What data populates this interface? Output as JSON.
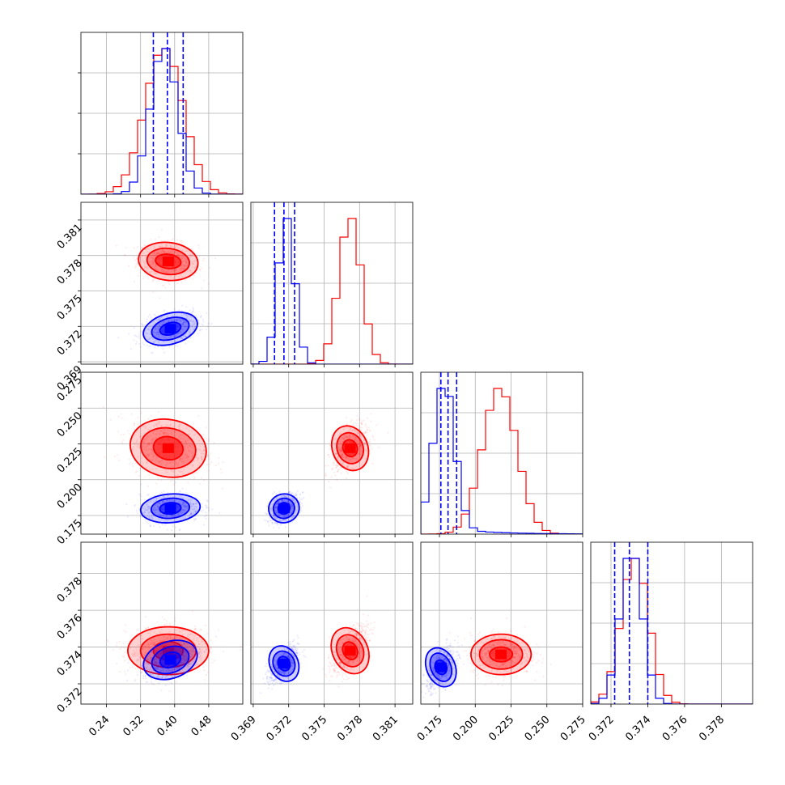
{
  "chart_data": {
    "type": "corner",
    "colors": {
      "red": "#ff0000",
      "blue": "#0000ff"
    },
    "grid": true,
    "parameters": [
      {
        "index": 0,
        "range": [
          0.18,
          0.56
        ],
        "ticks": [
          "0.24",
          "0.32",
          "0.40",
          "0.48"
        ],
        "tick_values": [
          0.24,
          0.32,
          0.4,
          0.48
        ]
      },
      {
        "index": 1,
        "range": [
          0.3688,
          0.3825
        ],
        "ticks": [
          "0.369",
          "0.372",
          "0.375",
          "0.378",
          "0.381"
        ],
        "tick_values": [
          0.369,
          0.372,
          0.375,
          0.378,
          0.381
        ]
      },
      {
        "index": 2,
        "range": [
          0.162,
          0.275
        ],
        "ticks": [
          "0.175",
          "0.200",
          "0.225",
          "0.250",
          "0.275"
        ],
        "tick_values": [
          0.175,
          0.2,
          0.225,
          0.25,
          0.275
        ]
      },
      {
        "index": 3,
        "range": [
          0.3709,
          0.3797
        ],
        "ticks": [
          "0.372",
          "0.374",
          "0.376",
          "0.378"
        ],
        "tick_values": [
          0.372,
          0.374,
          0.376,
          0.378
        ]
      }
    ],
    "series": [
      {
        "color": "red",
        "means": [
          0.385,
          0.3775,
          0.222,
          0.3738
        ],
        "sds": [
          0.045,
          0.00095,
          0.012,
          0.00075
        ],
        "hist_peaks": [
          0.375,
          0.3772,
          0.217,
          0.3733
        ]
      },
      {
        "color": "blue",
        "means": [
          0.39,
          0.3718,
          0.18,
          0.373
        ],
        "sds": [
          0.032,
          0.0007,
          0.0075,
          0.0006
        ],
        "hist_peaks": [
          0.375,
          0.3718,
          0.178,
          0.3731
        ],
        "quantiles": [
          [
            0.35,
            0.383,
            0.42
          ],
          [
            0.3708,
            0.3716,
            0.3725
          ],
          [
            0.176,
            0.181,
            0.187
          ],
          [
            0.3722,
            0.373,
            0.374
          ]
        ]
      }
    ],
    "contours": [
      {
        "panel": [
          1,
          0
        ],
        "series": [
          {
            "color": "red",
            "center": [
              0.385,
              0.3775
            ],
            "radii": [
              [
                0.03,
                0.0006
              ],
              [
                0.05,
                0.0011
              ],
              [
                0.07,
                0.0016
              ]
            ],
            "tilt": -0.15
          },
          {
            "color": "blue",
            "center": [
              0.39,
              0.3718
            ],
            "radii": [
              [
                0.025,
                0.0005
              ],
              [
                0.045,
                0.0009
              ],
              [
                0.065,
                0.0013
              ]
            ],
            "tilt": 0.35
          }
        ]
      },
      {
        "panel": [
          2,
          0
        ],
        "series": [
          {
            "color": "red",
            "center": [
              0.385,
              0.222
            ],
            "radii": [
              [
                0.035,
                0.008
              ],
              [
                0.065,
                0.014
              ],
              [
                0.09,
                0.02
              ]
            ],
            "tilt": -0.25
          },
          {
            "color": "blue",
            "center": [
              0.39,
              0.18
            ],
            "radii": [
              [
                0.025,
                0.004
              ],
              [
                0.045,
                0.007
              ],
              [
                0.07,
                0.01
              ]
            ],
            "tilt": 0.1
          }
        ]
      },
      {
        "panel": [
          2,
          1
        ],
        "series": [
          {
            "color": "red",
            "center": [
              0.3772,
              0.222
            ],
            "radii": [
              [
                0.0006,
                0.006
              ],
              [
                0.0011,
                0.011
              ],
              [
                0.0015,
                0.016
              ]
            ],
            "tilt": 0.5
          },
          {
            "color": "blue",
            "center": [
              0.3716,
              0.18
            ],
            "radii": [
              [
                0.0005,
                0.004
              ],
              [
                0.0009,
                0.007
              ],
              [
                0.0013,
                0.01
              ]
            ],
            "tilt": 0.4
          }
        ]
      },
      {
        "panel": [
          3,
          0
        ],
        "series": [
          {
            "color": "red",
            "center": [
              0.385,
              0.3738
            ],
            "radii": [
              [
                0.035,
                0.0005
              ],
              [
                0.065,
                0.0009
              ],
              [
                0.095,
                0.0013
              ]
            ],
            "tilt": 0.0
          },
          {
            "color": "blue",
            "center": [
              0.39,
              0.3733
            ],
            "radii": [
              [
                0.025,
                0.0004
              ],
              [
                0.045,
                0.0007
              ],
              [
                0.065,
                0.001
              ]
            ],
            "tilt": 0.45
          }
        ]
      },
      {
        "panel": [
          3,
          1
        ],
        "series": [
          {
            "color": "red",
            "center": [
              0.3772,
              0.3738
            ],
            "radii": [
              [
                0.0006,
                0.0005
              ],
              [
                0.0011,
                0.0009
              ],
              [
                0.0015,
                0.0013
              ]
            ],
            "tilt": 0.6
          },
          {
            "color": "blue",
            "center": [
              0.3716,
              0.3731
            ],
            "radii": [
              [
                0.0005,
                0.0004
              ],
              [
                0.0009,
                0.0007
              ],
              [
                0.0012,
                0.001
              ]
            ],
            "tilt": 0.6
          }
        ]
      },
      {
        "panel": [
          3,
          2
        ],
        "series": [
          {
            "color": "red",
            "center": [
              0.218,
              0.3736
            ],
            "radii": [
              [
                0.008,
                0.0004
              ],
              [
                0.015,
                0.0008
              ],
              [
                0.021,
                0.0011
              ]
            ],
            "tilt": 0.0
          },
          {
            "color": "blue",
            "center": [
              0.176,
              0.3729
            ],
            "radii": [
              [
                0.004,
                0.0004
              ],
              [
                0.007,
                0.0008
              ],
              [
                0.01,
                0.0011
              ]
            ],
            "tilt": 0.55
          }
        ]
      }
    ]
  }
}
